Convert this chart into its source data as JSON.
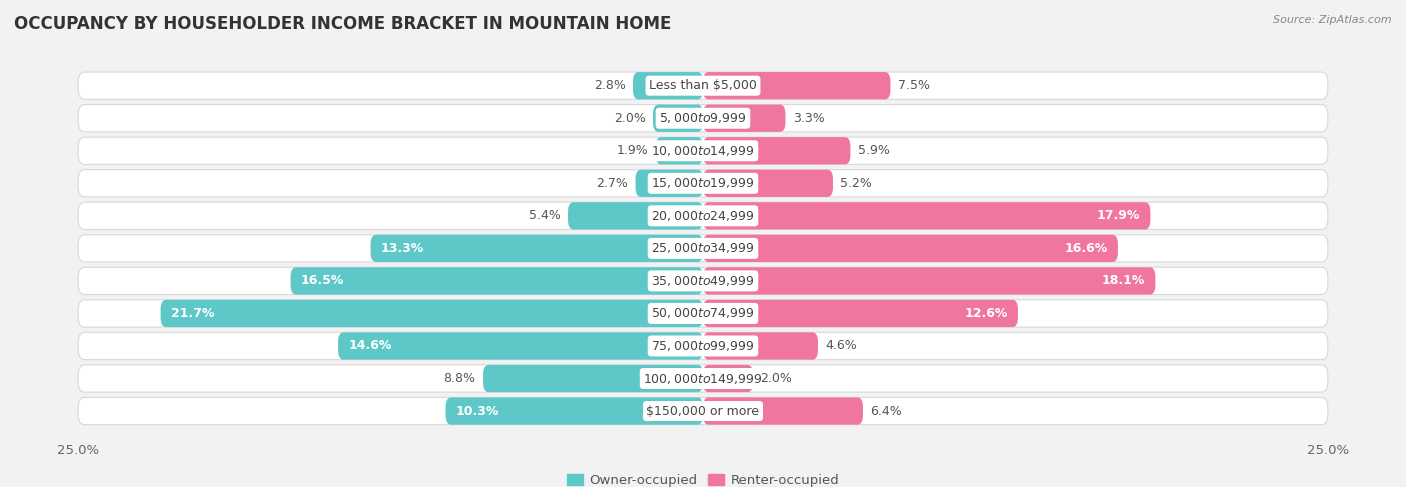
{
  "title": "OCCUPANCY BY HOUSEHOLDER INCOME BRACKET IN MOUNTAIN HOME",
  "source": "Source: ZipAtlas.com",
  "categories": [
    "Less than $5,000",
    "$5,000 to $9,999",
    "$10,000 to $14,999",
    "$15,000 to $19,999",
    "$20,000 to $24,999",
    "$25,000 to $34,999",
    "$35,000 to $49,999",
    "$50,000 to $74,999",
    "$75,000 to $99,999",
    "$100,000 to $149,999",
    "$150,000 or more"
  ],
  "owner_values": [
    2.8,
    2.0,
    1.9,
    2.7,
    5.4,
    13.3,
    16.5,
    21.7,
    14.6,
    8.8,
    10.3
  ],
  "renter_values": [
    7.5,
    3.3,
    5.9,
    5.2,
    17.9,
    16.6,
    18.1,
    12.6,
    4.6,
    2.0,
    6.4
  ],
  "owner_color": "#5ec8c8",
  "renter_color": "#f075a0",
  "background_color": "#f2f2f2",
  "row_bg_color": "#ffffff",
  "row_border_color": "#d8d8d8",
  "xlim": 25.0,
  "label_fontsize": 9.0,
  "category_fontsize": 9.0,
  "title_fontsize": 12,
  "legend_fontsize": 9.5,
  "owner_label_threshold": 10.0,
  "renter_label_threshold": 10.0
}
